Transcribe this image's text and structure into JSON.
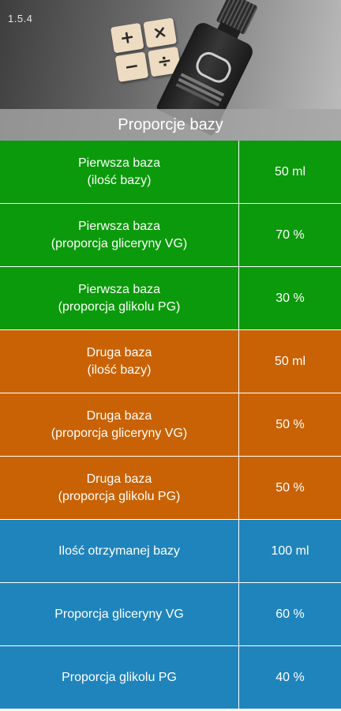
{
  "app": {
    "version": "1.5.4",
    "title": "Proporcje bazy"
  },
  "calculator_icon": {
    "keys": [
      "+",
      "×",
      "−",
      "÷"
    ]
  },
  "colors": {
    "first_base": "#0b9a0b",
    "second_base": "#c96204",
    "result": "#1f84bb"
  },
  "rows": [
    {
      "label": "Pierwsza baza\n(ilość bazy)",
      "value": "50 ml",
      "group": "first_base"
    },
    {
      "label": "Pierwsza baza\n(proporcja gliceryny VG)",
      "value": "70 %",
      "group": "first_base"
    },
    {
      "label": "Pierwsza baza\n(proporcja glikolu PG)",
      "value": "30 %",
      "group": "first_base"
    },
    {
      "label": "Druga baza\n(ilość bazy)",
      "value": "50 ml",
      "group": "second_base"
    },
    {
      "label": "Druga baza\n(proporcja gliceryny VG)",
      "value": "50 %",
      "group": "second_base"
    },
    {
      "label": "Druga baza\n(proporcja glikolu PG)",
      "value": "50 %",
      "group": "second_base"
    },
    {
      "label": "Ilość otrzymanej bazy",
      "value": "100 ml",
      "group": "result"
    },
    {
      "label": "Proporcja gliceryny VG",
      "value": "60 %",
      "group": "result"
    },
    {
      "label": "Proporcja glikolu PG",
      "value": "40 %",
      "group": "result"
    }
  ]
}
